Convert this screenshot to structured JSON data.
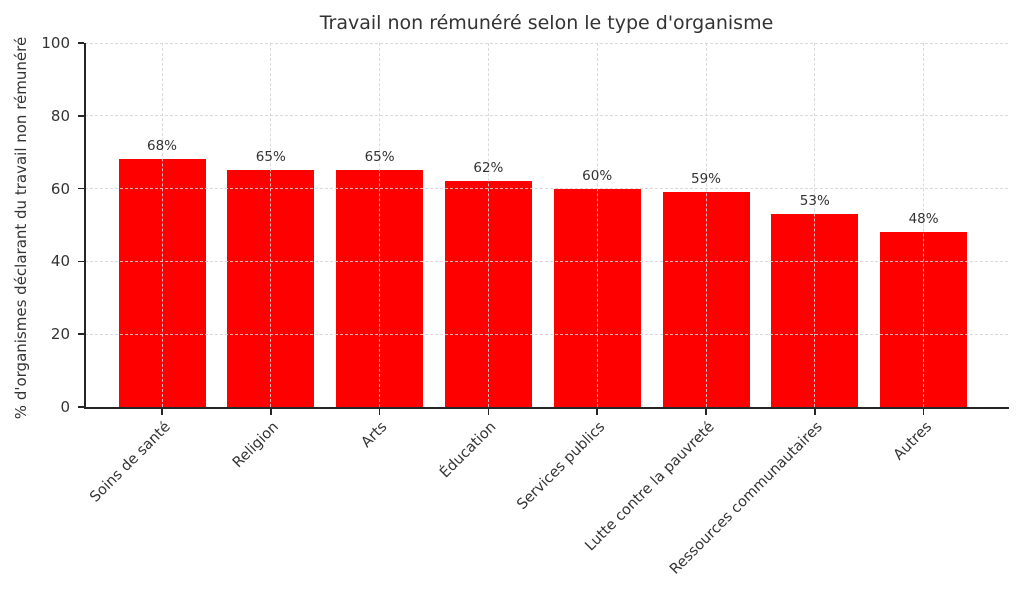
{
  "chart_data": {
    "type": "bar",
    "title": "Travail non rémunéré selon le type d'organisme",
    "xlabel": "",
    "ylabel": "% d'organismes déclarant du travail non rémunéré",
    "categories": [
      "Soins de santé",
      "Religion",
      "Arts",
      "Éducation",
      "Services publics",
      "Lutte contre la pauvreté",
      "Ressources communautaires",
      "Autres"
    ],
    "values": [
      68,
      65,
      65,
      62,
      60,
      59,
      53,
      48
    ],
    "value_labels": [
      "68%",
      "65%",
      "65%",
      "62%",
      "60%",
      "59%",
      "53%",
      "48%"
    ],
    "yticks": [
      0,
      20,
      40,
      60,
      80,
      100
    ],
    "ylim": [
      0,
      100
    ],
    "bar_color": "#ff0000",
    "text_color": "#333333",
    "spine_color": "#262626",
    "grid_color": "#d3d3d3",
    "grid": {
      "visible": true,
      "style": "dashed",
      "axes": "both",
      "drawn_above_bars": true
    },
    "legend": "none",
    "x_tick_rotation_deg": 45
  }
}
